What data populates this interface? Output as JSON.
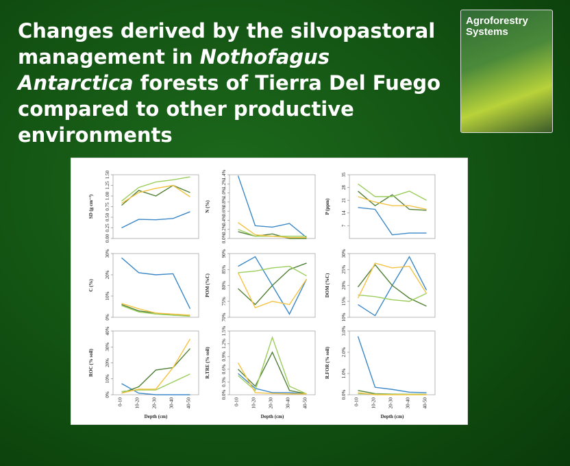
{
  "slide": {
    "title": [
      "Changes derived by the silvopastoral management in ",
      "Nothofagus Antarctica",
      " forests of Tierra Del Fuego compared to other productive environments"
    ]
  },
  "cover": {
    "title": [
      "Agroforestry",
      "Systems"
    ]
  },
  "chart_data": [
    {
      "type": "line",
      "y_label": "SD (g cm⁻³)",
      "categories": [
        null,
        null,
        null,
        null,
        null
      ],
      "ylim": [
        0,
        1.5
      ],
      "yticks": [
        {
          "value": 0,
          "label": "0.00"
        },
        {
          "value": 0.25,
          "label": "0.25"
        },
        {
          "value": 0.5,
          "label": "0.50"
        },
        {
          "value": 0.75,
          "label": "0.75"
        },
        {
          "value": 1,
          "label": "1.00"
        },
        {
          "value": 1.25,
          "label": "1.25"
        },
        {
          "value": 1.5,
          "label": "1.50"
        }
      ],
      "series": [
        {
          "color": "#3a87c8",
          "values": [
            0.25,
            0.45,
            0.44,
            0.47,
            0.63
          ]
        },
        {
          "color": "#4f7f34",
          "values": [
            0.78,
            1.13,
            1.0,
            1.25,
            1.08
          ]
        },
        {
          "color": "#9acd5a",
          "values": [
            0.88,
            1.2,
            1.33,
            1.38,
            1.45
          ]
        },
        {
          "color": "#f5c342",
          "values": [
            0.83,
            1.08,
            1.18,
            1.25,
            0.98
          ]
        }
      ]
    },
    {
      "type": "line",
      "y_label": "N (%)",
      "categories": [
        null,
        null,
        null,
        null,
        null
      ],
      "ylim": [
        0,
        1.4
      ],
      "yticks": [
        {
          "value": 0,
          "label": "0.0%"
        },
        {
          "value": 0.2,
          "label": "0.2%"
        },
        {
          "value": 0.4,
          "label": "0.4%"
        },
        {
          "value": 0.6,
          "label": "0.6%"
        },
        {
          "value": 0.8,
          "label": "0.8%"
        },
        {
          "value": 1.0,
          "label": "1.0%"
        },
        {
          "value": 1.2,
          "label": "1.2%"
        },
        {
          "value": 1.4,
          "label": "1.4%"
        }
      ],
      "series": [
        {
          "color": "#3a87c8",
          "values": [
            1.38,
            0.28,
            0.25,
            0.33,
            0.02
          ]
        },
        {
          "color": "#4f7f34",
          "values": [
            0.15,
            0.05,
            0.1,
            0.0,
            0.0
          ]
        },
        {
          "color": "#9acd5a",
          "values": [
            0.2,
            0.05,
            0.05,
            0.05,
            0.05
          ]
        },
        {
          "color": "#f5c342",
          "values": [
            0.35,
            0.08,
            0.05,
            0.02,
            0.02
          ]
        }
      ]
    },
    {
      "type": "line",
      "y_label": "P (ppm)",
      "categories": [
        null,
        null,
        null,
        null,
        null
      ],
      "ylim": [
        0,
        35
      ],
      "yticks": [
        7,
        14,
        21,
        28,
        35
      ],
      "series": [
        {
          "color": "#3a87c8",
          "values": [
            17,
            16,
            2,
            3,
            3
          ]
        },
        {
          "color": "#4f7f34",
          "values": [
            26,
            18,
            24,
            16,
            15.5
          ]
        },
        {
          "color": "#9acd5a",
          "values": [
            30,
            23,
            23,
            26,
            21
          ]
        },
        {
          "color": "#f5c342",
          "values": [
            23,
            20,
            18,
            18,
            16
          ]
        }
      ]
    },
    {
      "type": "line",
      "y_label": "C (%)",
      "categories": [
        null,
        null,
        null,
        null,
        null
      ],
      "ylim": [
        0,
        30
      ],
      "yticks": [
        {
          "value": 0,
          "label": "0%"
        },
        {
          "value": 10,
          "label": "10%"
        },
        {
          "value": 20,
          "label": "20%"
        },
        {
          "value": 30,
          "label": "30%"
        }
      ],
      "series": [
        {
          "color": "#3a87c8",
          "values": [
            28,
            21,
            20,
            20.5,
            4
          ]
        },
        {
          "color": "#4f7f34",
          "values": [
            6,
            3,
            2,
            1,
            1
          ]
        },
        {
          "color": "#9acd5a",
          "values": [
            5.5,
            2.5,
            1.5,
            1,
            0.5
          ]
        },
        {
          "color": "#f5c342",
          "values": [
            6.5,
            4,
            2,
            1.5,
            1
          ]
        }
      ]
    },
    {
      "type": "line",
      "y_label": "POM (%C)",
      "categories": [
        null,
        null,
        null,
        null,
        null
      ],
      "ylim": [
        70,
        90
      ],
      "yticks": [
        {
          "value": 70,
          "label": "70%"
        },
        {
          "value": 75,
          "label": "75%"
        },
        {
          "value": 80,
          "label": "80%"
        },
        {
          "value": 85,
          "label": "85%"
        },
        {
          "value": 90,
          "label": "90%"
        }
      ],
      "series": [
        {
          "color": "#3a87c8",
          "values": [
            86,
            89,
            80,
            71,
            82
          ]
        },
        {
          "color": "#4f7f34",
          "values": [
            79,
            74,
            80,
            85,
            87
          ]
        },
        {
          "color": "#9acd5a",
          "values": [
            84,
            84.5,
            85.5,
            86,
            83
          ]
        },
        {
          "color": "#f5c342",
          "values": [
            84,
            73,
            75,
            74,
            82
          ]
        }
      ]
    },
    {
      "type": "line",
      "y_label": "DOM (%C)",
      "categories": [
        null,
        null,
        null,
        null,
        null
      ],
      "ylim": [
        10,
        30
      ],
      "yticks": [
        {
          "value": 10,
          "label": "10%"
        },
        {
          "value": 15,
          "label": "15%"
        },
        {
          "value": 20,
          "label": "20%"
        },
        {
          "value": 25,
          "label": "25%"
        },
        {
          "value": 30,
          "label": "30%"
        }
      ],
      "series": [
        {
          "color": "#3a87c8",
          "values": [
            14,
            10.5,
            20,
            29,
            18.5
          ]
        },
        {
          "color": "#4f7f34",
          "values": [
            19.5,
            26.5,
            20,
            16,
            13.5
          ]
        },
        {
          "color": "#9acd5a",
          "values": [
            17,
            16.5,
            15.5,
            15,
            17.5
          ]
        },
        {
          "color": "#f5c342",
          "values": [
            16,
            27,
            25.5,
            26,
            17.5
          ]
        }
      ]
    },
    {
      "type": "line",
      "y_label": "ROC (% soil)",
      "x_label": "Depth (cm)",
      "categories": [
        "0-10",
        "10-20",
        "20-30",
        "30-40",
        "40-50"
      ],
      "ylim": [
        0,
        40
      ],
      "yticks": [
        {
          "value": 0,
          "label": "0%"
        },
        {
          "value": 10,
          "label": "10%"
        },
        {
          "value": 20,
          "label": "20%"
        },
        {
          "value": 30,
          "label": "30%"
        },
        {
          "value": 40,
          "label": "40%"
        }
      ],
      "series": [
        {
          "color": "#3a87c8",
          "values": [
            7,
            1,
            0,
            0,
            0
          ]
        },
        {
          "color": "#4f7f34",
          "values": [
            1,
            5,
            15.5,
            17,
            29
          ]
        },
        {
          "color": "#9acd5a",
          "values": [
            2,
            3,
            3,
            8,
            13
          ]
        },
        {
          "color": "#f5c342",
          "values": [
            1,
            3.5,
            3.5,
            17,
            35
          ]
        }
      ]
    },
    {
      "type": "line",
      "y_label": "R.TRE (% soil)",
      "x_label": "Depth (cm)",
      "categories": [
        "0-10",
        "10-20",
        "20-30",
        "30-40",
        "40-50"
      ],
      "ylim": [
        0,
        1.5
      ],
      "yticks": [
        {
          "value": 0,
          "label": "0.0%"
        },
        {
          "value": 0.3,
          "label": "0.3%"
        },
        {
          "value": 0.6,
          "label": "0.6%"
        },
        {
          "value": 0.9,
          "label": "0.9%"
        },
        {
          "value": 1.2,
          "label": "1.2%"
        },
        {
          "value": 1.5,
          "label": "1.5%"
        }
      ],
      "series": [
        {
          "color": "#3a87c8",
          "values": [
            0.5,
            0.15,
            0.05,
            0.05,
            0.02
          ]
        },
        {
          "color": "#4f7f34",
          "values": [
            0.6,
            0.2,
            1.0,
            0.1,
            0.02
          ]
        },
        {
          "color": "#9acd5a",
          "values": [
            0.45,
            0.1,
            1.35,
            0.2,
            0.02
          ]
        },
        {
          "color": "#f5c342",
          "values": [
            0.75,
            0.05,
            0.03,
            0.02,
            0.02
          ]
        }
      ]
    },
    {
      "type": "line",
      "y_label": "R.FOR (% soil)",
      "x_label": "Depth (cm)",
      "categories": [
        "0-10",
        "10-20",
        "20-30",
        "30-40",
        "40-50"
      ],
      "ylim": [
        0,
        3.0
      ],
      "yticks": [
        {
          "value": 0,
          "label": "0.0%"
        },
        {
          "value": 1,
          "label": "1.0%"
        },
        {
          "value": 2,
          "label": "2.0%"
        },
        {
          "value": 3,
          "label": "3.0%"
        }
      ],
      "series": [
        {
          "color": "#3a87c8",
          "values": [
            2.75,
            0.35,
            0.25,
            0.12,
            0.1
          ]
        },
        {
          "color": "#4f7f34",
          "values": [
            0.2,
            0.05,
            0.03,
            0.02,
            0.02
          ]
        },
        {
          "color": "#9acd5a",
          "values": [
            0.05,
            0.03,
            0.02,
            0.02,
            0.02
          ]
        },
        {
          "color": "#f5c342",
          "values": [
            0.1,
            0.0,
            0.0,
            0.0,
            0.0
          ]
        }
      ]
    }
  ]
}
